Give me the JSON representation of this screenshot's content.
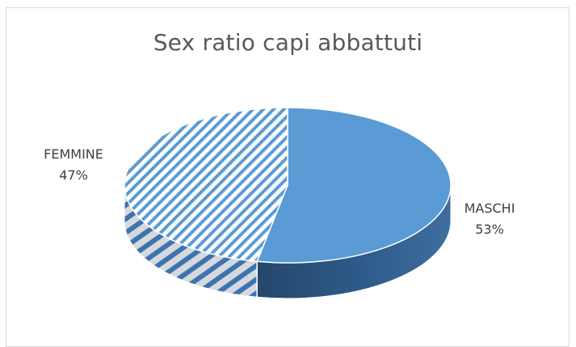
{
  "chart_data": {
    "type": "pie",
    "title": "Sex ratio capi abbattuti",
    "slices": [
      {
        "label": "MASCHI",
        "value": 53,
        "percent_label": "53%",
        "color": "#5b9bd5",
        "side_color": "#2f5f8f",
        "pattern": "solid"
      },
      {
        "label": "FEMMINE",
        "value": 47,
        "percent_label": "47%",
        "color": "#5b9bd5",
        "side_color": "#5b9bd5",
        "pattern": "diagonal-stripes"
      }
    ],
    "style": "3d",
    "legend": "none",
    "data_labels": "outside"
  }
}
